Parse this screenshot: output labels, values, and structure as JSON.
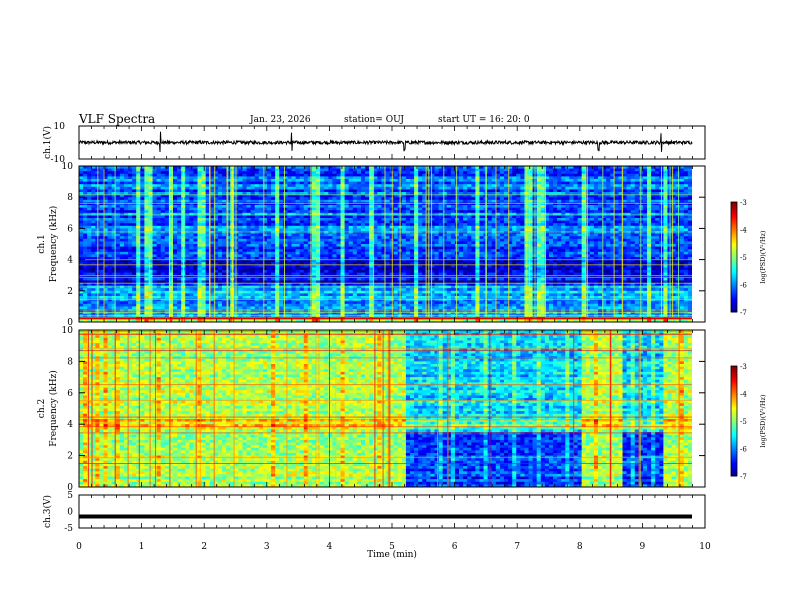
{
  "header": {
    "title": "VLF Spectra",
    "date": "Jan. 23, 2026",
    "station": "station= OUJ",
    "start": "start  UT =   16: 20: 0"
  },
  "chart_data": [
    {
      "type": "line",
      "panel": "ch1-waveform",
      "ylabel": "ch.1(V)",
      "ylim": [
        -10,
        10
      ],
      "yticks": [
        10,
        -10
      ],
      "series": [
        {
          "name": "ch.1",
          "baseline": 0,
          "noise_amplitude": 1,
          "spikes_min": [
            1.3,
            3.4,
            5.2,
            8.3,
            9.3
          ]
        }
      ]
    },
    {
      "type": "heatmap",
      "panel": "ch1-spectrogram",
      "ylabel": "ch.1\nFrequency (kHz)",
      "ylim": [
        0,
        10
      ],
      "yticks": [
        0,
        2,
        4,
        6,
        8,
        10
      ],
      "xlim": [
        0,
        9.85
      ],
      "colorbar": {
        "label": "log(PSD)(V²/Hz)",
        "range": [
          -7,
          -3
        ],
        "ticks": [
          -3,
          -4,
          -5,
          -6,
          -7
        ]
      },
      "description_level": "low (-6 to -5) with broadband vertical impulses"
    },
    {
      "type": "heatmap",
      "panel": "ch2-spectrogram",
      "ylabel": "ch.2\nFrequency (kHz)",
      "ylim": [
        0,
        10
      ],
      "yticks": [
        0,
        2,
        4,
        6,
        8,
        10
      ],
      "xlim": [
        0,
        9.85
      ],
      "colorbar": {
        "label": "log(PSD)(V²/Hz)",
        "range": [
          -7,
          -3
        ],
        "ticks": [
          -3,
          -4,
          -5,
          -6,
          -7
        ]
      },
      "quiet_intervals_min": [
        [
          5.2,
          8.0
        ],
        [
          8.65,
          9.3
        ]
      ]
    },
    {
      "type": "line",
      "panel": "ch3-waveform",
      "ylabel": "ch.3(V)",
      "ylim": [
        -5,
        5
      ],
      "yticks": [
        5,
        0,
        -5
      ],
      "series": [
        {
          "name": "ch.3",
          "value": -1.5
        }
      ]
    }
  ],
  "xaxis": {
    "label": "Time (min)",
    "range": [
      0,
      10
    ],
    "ticks": [
      "0",
      "1",
      "2",
      "3",
      "4",
      "5",
      "6",
      "7",
      "8",
      "9",
      "10"
    ]
  }
}
